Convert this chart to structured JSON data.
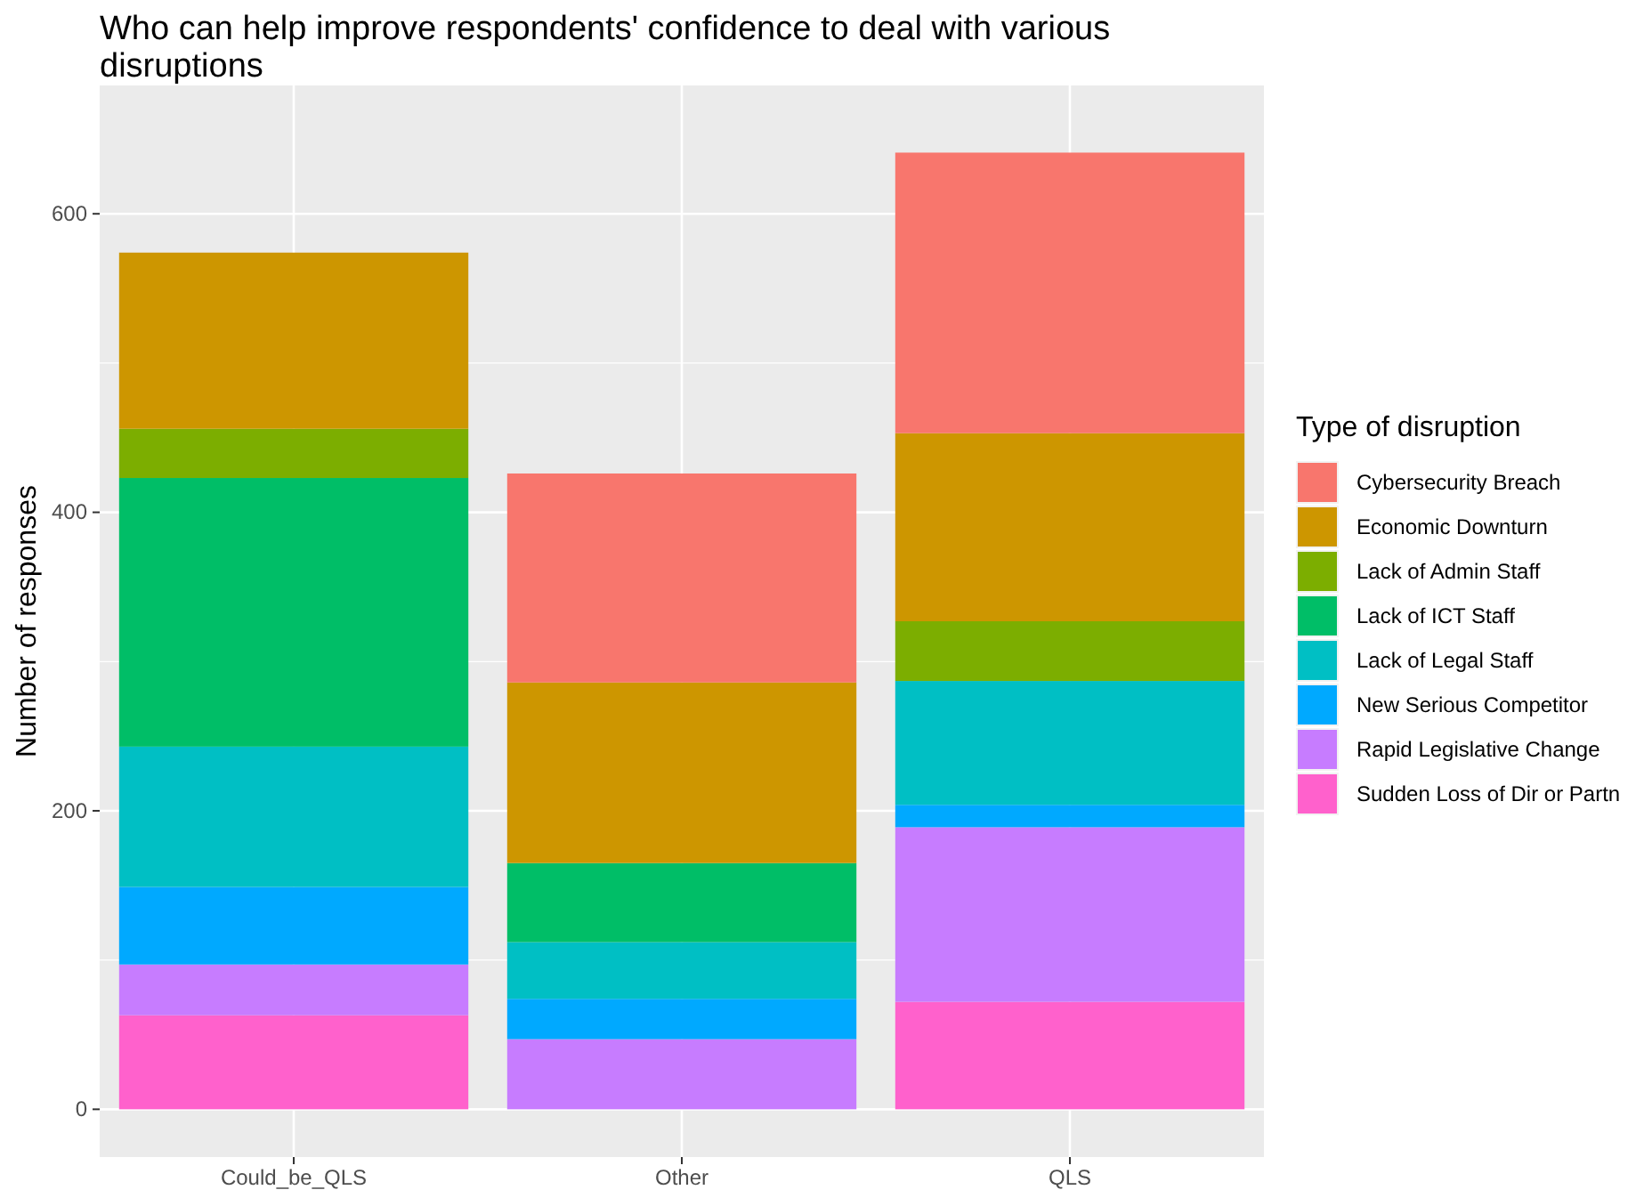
{
  "chart_data": {
    "type": "bar",
    "title": "Who can help improve respondents' confidence to deal with various disruptions",
    "xlabel": null,
    "ylabel": "Number of responses",
    "legend_title": "Type of disruption",
    "categories": [
      "Could_be_QLS",
      "Other",
      "QLS"
    ],
    "stacked": true,
    "ylim": [
      -32,
      686
    ],
    "yticks": [
      0,
      200,
      400,
      600
    ],
    "grid": true,
    "legend": "right",
    "series": [
      {
        "name": "Sudden Loss of Dir or Partn",
        "color": "#ff61cc",
        "values": [
          63,
          0,
          72
        ]
      },
      {
        "name": "Rapid Legislative Change",
        "color": "#c77cff",
        "values": [
          34,
          47,
          117
        ]
      },
      {
        "name": "New Serious Competitor",
        "color": "#00a9ff",
        "values": [
          52,
          27,
          15
        ]
      },
      {
        "name": "Lack of Legal Staff",
        "color": "#00bfc4",
        "values": [
          94,
          38,
          83
        ]
      },
      {
        "name": "Lack of ICT Staff",
        "color": "#00be67",
        "values": [
          180,
          53,
          0
        ]
      },
      {
        "name": "Lack of Admin Staff",
        "color": "#7cae00",
        "values": [
          33,
          0,
          40
        ]
      },
      {
        "name": "Economic Downturn",
        "color": "#cd9600",
        "values": [
          118,
          121,
          126
        ]
      },
      {
        "name": "Cybersecurity Breach",
        "color": "#f8766d",
        "values": [
          0,
          140,
          188
        ]
      }
    ]
  }
}
